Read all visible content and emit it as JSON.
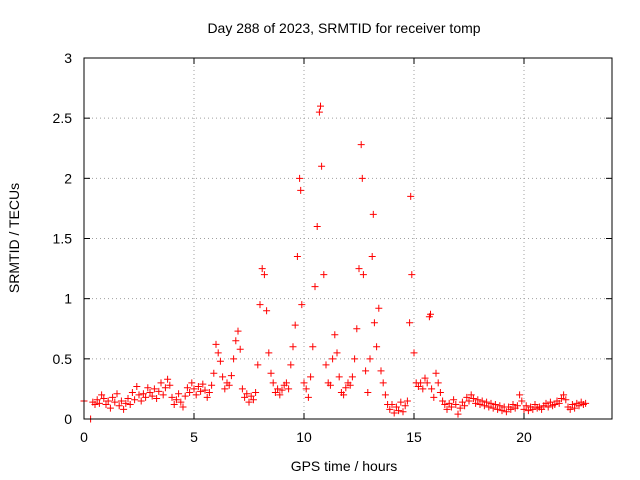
{
  "chart_data": {
    "type": "scatter",
    "title": "Day 288 of 2023, SRMTID for receiver tomp",
    "xlabel": "GPS time / hours",
    "ylabel": "SRMTID / TECUs",
    "xlim": [
      0,
      24
    ],
    "ylim": [
      0,
      3
    ],
    "xticks": [
      0,
      5,
      10,
      15,
      20
    ],
    "yticks": [
      0,
      0.5,
      1,
      1.5,
      2,
      2.5,
      3
    ],
    "xtick_labels": [
      "0",
      "5",
      "10",
      "15",
      "20"
    ],
    "ytick_labels": [
      "0",
      "0.5",
      "1",
      "1.5",
      "2",
      "2.5",
      "3"
    ],
    "grid": true,
    "marker": "+",
    "color": "#ff0000",
    "x_range_hours": [
      0,
      22.8
    ],
    "series": [
      {
        "name": "SRMTID",
        "points": [
          [
            0.0,
            0.15
          ],
          [
            0.3,
            0.0
          ],
          [
            0.4,
            0.14
          ],
          [
            0.5,
            0.12
          ],
          [
            0.6,
            0.16
          ],
          [
            0.7,
            0.13
          ],
          [
            0.8,
            0.2
          ],
          [
            0.9,
            0.17
          ],
          [
            1.0,
            0.12
          ],
          [
            1.1,
            0.15
          ],
          [
            1.2,
            0.09
          ],
          [
            1.3,
            0.18
          ],
          [
            1.4,
            0.14
          ],
          [
            1.5,
            0.21
          ],
          [
            1.6,
            0.11
          ],
          [
            1.7,
            0.15
          ],
          [
            1.8,
            0.08
          ],
          [
            1.9,
            0.13
          ],
          [
            2.0,
            0.17
          ],
          [
            2.1,
            0.12
          ],
          [
            2.2,
            0.22
          ],
          [
            2.3,
            0.16
          ],
          [
            2.4,
            0.27
          ],
          [
            2.5,
            0.2
          ],
          [
            2.6,
            0.15
          ],
          [
            2.7,
            0.21
          ],
          [
            2.8,
            0.18
          ],
          [
            2.9,
            0.26
          ],
          [
            3.0,
            0.22
          ],
          [
            3.1,
            0.19
          ],
          [
            3.2,
            0.25
          ],
          [
            3.3,
            0.17
          ],
          [
            3.4,
            0.23
          ],
          [
            3.5,
            0.3
          ],
          [
            3.6,
            0.2
          ],
          [
            3.7,
            0.26
          ],
          [
            3.8,
            0.33
          ],
          [
            3.9,
            0.28
          ],
          [
            4.0,
            0.18
          ],
          [
            4.1,
            0.12
          ],
          [
            4.2,
            0.16
          ],
          [
            4.3,
            0.21
          ],
          [
            4.4,
            0.14
          ],
          [
            4.5,
            0.1
          ],
          [
            4.6,
            0.19
          ],
          [
            4.7,
            0.26
          ],
          [
            4.8,
            0.22
          ],
          [
            4.9,
            0.3
          ],
          [
            5.0,
            0.25
          ],
          [
            5.1,
            0.2
          ],
          [
            5.2,
            0.27
          ],
          [
            5.3,
            0.23
          ],
          [
            5.4,
            0.29
          ],
          [
            5.5,
            0.24
          ],
          [
            5.6,
            0.18
          ],
          [
            5.7,
            0.22
          ],
          [
            5.8,
            0.28
          ],
          [
            5.9,
            0.38
          ],
          [
            6.0,
            0.62
          ],
          [
            6.1,
            0.55
          ],
          [
            6.2,
            0.48
          ],
          [
            6.3,
            0.35
          ],
          [
            6.4,
            0.25
          ],
          [
            6.5,
            0.3
          ],
          [
            6.6,
            0.28
          ],
          [
            6.7,
            0.36
          ],
          [
            6.8,
            0.5
          ],
          [
            6.9,
            0.65
          ],
          [
            7.0,
            0.73
          ],
          [
            7.1,
            0.58
          ],
          [
            7.2,
            0.25
          ],
          [
            7.3,
            0.18
          ],
          [
            7.4,
            0.21
          ],
          [
            7.5,
            0.14
          ],
          [
            7.6,
            0.19
          ],
          [
            7.7,
            0.16
          ],
          [
            7.8,
            0.22
          ],
          [
            7.9,
            0.45
          ],
          [
            8.0,
            0.95
          ],
          [
            8.1,
            1.25
          ],
          [
            8.2,
            1.2
          ],
          [
            8.3,
            0.9
          ],
          [
            8.4,
            0.55
          ],
          [
            8.5,
            0.38
          ],
          [
            8.6,
            0.3
          ],
          [
            8.7,
            0.22
          ],
          [
            8.8,
            0.25
          ],
          [
            8.9,
            0.2
          ],
          [
            9.0,
            0.24
          ],
          [
            9.1,
            0.28
          ],
          [
            9.2,
            0.3
          ],
          [
            9.3,
            0.25
          ],
          [
            9.4,
            0.45
          ],
          [
            9.5,
            0.6
          ],
          [
            9.6,
            0.78
          ],
          [
            9.7,
            1.35
          ],
          [
            9.8,
            2.0
          ],
          [
            9.85,
            1.9
          ],
          [
            9.9,
            0.95
          ],
          [
            10.0,
            0.3
          ],
          [
            10.1,
            0.25
          ],
          [
            10.2,
            0.18
          ],
          [
            10.3,
            0.35
          ],
          [
            10.4,
            0.6
          ],
          [
            10.5,
            1.1
          ],
          [
            10.6,
            1.6
          ],
          [
            10.7,
            2.55
          ],
          [
            10.75,
            2.6
          ],
          [
            10.8,
            2.1
          ],
          [
            10.9,
            1.2
          ],
          [
            11.0,
            0.45
          ],
          [
            11.1,
            0.3
          ],
          [
            11.2,
            0.28
          ],
          [
            11.3,
            0.5
          ],
          [
            11.4,
            0.7
          ],
          [
            11.5,
            0.55
          ],
          [
            11.6,
            0.35
          ],
          [
            11.7,
            0.22
          ],
          [
            11.8,
            0.2
          ],
          [
            11.9,
            0.26
          ],
          [
            12.0,
            0.3
          ],
          [
            12.1,
            0.28
          ],
          [
            12.2,
            0.35
          ],
          [
            12.3,
            0.5
          ],
          [
            12.4,
            0.75
          ],
          [
            12.5,
            1.25
          ],
          [
            12.6,
            2.28
          ],
          [
            12.65,
            2.0
          ],
          [
            12.7,
            1.2
          ],
          [
            12.8,
            0.4
          ],
          [
            12.9,
            0.22
          ],
          [
            13.0,
            0.5
          ],
          [
            13.1,
            1.35
          ],
          [
            13.15,
            1.7
          ],
          [
            13.2,
            0.8
          ],
          [
            13.3,
            0.6
          ],
          [
            13.4,
            0.92
          ],
          [
            13.5,
            0.4
          ],
          [
            13.6,
            0.3
          ],
          [
            13.7,
            0.2
          ],
          [
            13.8,
            0.12
          ],
          [
            13.9,
            0.08
          ],
          [
            14.0,
            0.12
          ],
          [
            14.1,
            0.05
          ],
          [
            14.2,
            0.1
          ],
          [
            14.3,
            0.07
          ],
          [
            14.4,
            0.14
          ],
          [
            14.5,
            0.06
          ],
          [
            14.6,
            0.11
          ],
          [
            14.7,
            0.15
          ],
          [
            14.8,
            0.8
          ],
          [
            14.85,
            1.85
          ],
          [
            14.9,
            1.2
          ],
          [
            15.0,
            0.55
          ],
          [
            15.1,
            0.3
          ],
          [
            15.2,
            0.27
          ],
          [
            15.3,
            0.3
          ],
          [
            15.4,
            0.25
          ],
          [
            15.5,
            0.34
          ],
          [
            15.6,
            0.3
          ],
          [
            15.7,
            0.85
          ],
          [
            15.75,
            0.87
          ],
          [
            15.8,
            0.25
          ],
          [
            15.9,
            0.18
          ],
          [
            16.0,
            0.38
          ],
          [
            16.1,
            0.3
          ],
          [
            16.2,
            0.22
          ],
          [
            16.3,
            0.15
          ],
          [
            16.4,
            0.12
          ],
          [
            16.5,
            0.08
          ],
          [
            16.6,
            0.13
          ],
          [
            16.7,
            0.1
          ],
          [
            16.8,
            0.16
          ],
          [
            16.9,
            0.12
          ],
          [
            17.0,
            0.04
          ],
          [
            17.1,
            0.09
          ],
          [
            17.2,
            0.14
          ],
          [
            17.3,
            0.11
          ],
          [
            17.4,
            0.18
          ],
          [
            17.5,
            0.15
          ],
          [
            17.6,
            0.2
          ],
          [
            17.7,
            0.17
          ],
          [
            17.8,
            0.13
          ],
          [
            17.9,
            0.16
          ],
          [
            18.0,
            0.12
          ],
          [
            18.1,
            0.15
          ],
          [
            18.2,
            0.11
          ],
          [
            18.3,
            0.14
          ],
          [
            18.4,
            0.1
          ],
          [
            18.5,
            0.13
          ],
          [
            18.6,
            0.09
          ],
          [
            18.7,
            0.12
          ],
          [
            18.8,
            0.08
          ],
          [
            18.9,
            0.11
          ],
          [
            19.0,
            0.07
          ],
          [
            19.1,
            0.1
          ],
          [
            19.2,
            0.06
          ],
          [
            19.3,
            0.1
          ],
          [
            19.4,
            0.08
          ],
          [
            19.5,
            0.12
          ],
          [
            19.6,
            0.09
          ],
          [
            19.7,
            0.11
          ],
          [
            19.8,
            0.2
          ],
          [
            19.9,
            0.15
          ],
          [
            20.0,
            0.08
          ],
          [
            20.1,
            0.11
          ],
          [
            20.2,
            0.07
          ],
          [
            20.3,
            0.1
          ],
          [
            20.4,
            0.08
          ],
          [
            20.5,
            0.12
          ],
          [
            20.6,
            0.09
          ],
          [
            20.7,
            0.1
          ],
          [
            20.8,
            0.08
          ],
          [
            20.9,
            0.11
          ],
          [
            21.0,
            0.13
          ],
          [
            21.1,
            0.1
          ],
          [
            21.2,
            0.14
          ],
          [
            21.3,
            0.11
          ],
          [
            21.4,
            0.12
          ],
          [
            21.5,
            0.15
          ],
          [
            21.6,
            0.13
          ],
          [
            21.7,
            0.17
          ],
          [
            21.8,
            0.2
          ],
          [
            21.9,
            0.16
          ],
          [
            22.0,
            0.1
          ],
          [
            22.1,
            0.08
          ],
          [
            22.2,
            0.12
          ],
          [
            22.3,
            0.09
          ],
          [
            22.4,
            0.13
          ],
          [
            22.5,
            0.11
          ],
          [
            22.6,
            0.14
          ],
          [
            22.7,
            0.12
          ],
          [
            22.8,
            0.13
          ]
        ]
      }
    ]
  }
}
